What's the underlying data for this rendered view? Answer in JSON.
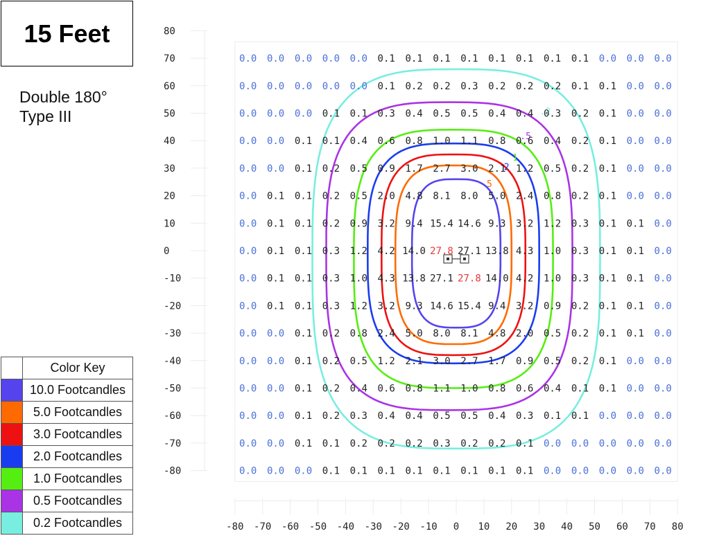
{
  "title": "15 Feet",
  "subtitle": [
    "Double 180°",
    "Type III"
  ],
  "color_key": {
    "header": "Color Key",
    "items": [
      {
        "label": "10.0 Footcandles",
        "color": "#5544ee"
      },
      {
        "label": "5.0 Footcandles",
        "color": "#ff6a00"
      },
      {
        "label": "3.0 Footcandles",
        "color": "#ee1111"
      },
      {
        "label": "2.0 Footcandles",
        "color": "#1a3cf0"
      },
      {
        "label": "1.0 Footcandles",
        "color": "#55ee11"
      },
      {
        "label": "0.5 Footcandles",
        "color": "#aa33e6"
      },
      {
        "label": "0.2 Footcandles",
        "color": "#77eee0"
      }
    ]
  },
  "chart_data": {
    "type": "heatmap",
    "x_ticks": [
      "-80",
      "-70",
      "-60",
      "-50",
      "-40",
      "-30",
      "-20",
      "-10",
      "0",
      "10",
      "20",
      "30",
      "40",
      "50",
      "60",
      "70",
      "80"
    ],
    "y_ticks": [
      "80",
      "70",
      "60",
      "50",
      "40",
      "30",
      "20",
      "10",
      "0",
      "-10",
      "-20",
      "-30",
      "-40",
      "-50",
      "-60",
      "-70",
      "-80"
    ],
    "x": [
      -70,
      -60,
      -50,
      -40,
      -30,
      -20,
      -10,
      0,
      10,
      20,
      30,
      40,
      50,
      60,
      70,
      80
    ],
    "y": [
      70,
      60,
      50,
      40,
      30,
      20,
      10,
      0,
      -10,
      -20,
      -30,
      -40,
      -50,
      -60,
      -70,
      -80
    ],
    "values": [
      [
        "0.0",
        "0.0",
        "0.0",
        "0.0",
        "0.0",
        "0.1",
        "0.1",
        "0.1",
        "0.1",
        "0.1",
        "0.1",
        "0.1",
        "0.1",
        "0.0",
        "0.0",
        "0.0"
      ],
      [
        "0.0",
        "0.0",
        "0.0",
        "0.0",
        "0.0",
        "0.1",
        "0.2",
        "0.2",
        "0.3",
        "0.2",
        "0.2",
        "0.2",
        "0.1",
        "0.1",
        "0.0",
        "0.0"
      ],
      [
        "0.0",
        "0.0",
        "0.0",
        "0.1",
        "0.1",
        "0.3",
        "0.4",
        "0.5",
        "0.5",
        "0.4",
        "0.4",
        "0.3",
        "0.2",
        "0.1",
        "0.0",
        "0.0"
      ],
      [
        "0.0",
        "0.0",
        "0.1",
        "0.1",
        "0.4",
        "0.6",
        "0.8",
        "1.0",
        "1.1",
        "0.8",
        "0.6",
        "0.4",
        "0.2",
        "0.1",
        "0.0",
        "0.0"
      ],
      [
        "0.0",
        "0.0",
        "0.1",
        "0.2",
        "0.5",
        "0.9",
        "1.7",
        "2.7",
        "3.0",
        "2.1",
        "1.2",
        "0.5",
        "0.2",
        "0.1",
        "0.0",
        "0.0"
      ],
      [
        "0.0",
        "0.1",
        "0.1",
        "0.2",
        "0.5",
        "2.0",
        "4.8",
        "8.1",
        "8.0",
        "5.0",
        "2.4",
        "0.8",
        "0.2",
        "0.1",
        "0.0",
        "0.0"
      ],
      [
        "0.0",
        "0.1",
        "0.1",
        "0.2",
        "0.9",
        "3.2",
        "9.4",
        "15.4",
        "14.6",
        "9.3",
        "3.2",
        "1.2",
        "0.3",
        "0.1",
        "0.1",
        "0.0"
      ],
      [
        "0.0",
        "0.1",
        "0.1",
        "0.3",
        "1.2",
        "4.2",
        "14.0",
        "27.8",
        "27.1",
        "13.8",
        "4.3",
        "1.0",
        "0.3",
        "0.1",
        "0.1",
        "0.0"
      ],
      [
        "0.0",
        "0.1",
        "0.1",
        "0.3",
        "1.0",
        "4.3",
        "13.8",
        "27.1",
        "27.8",
        "14.0",
        "4.2",
        "1.0",
        "0.3",
        "0.1",
        "0.1",
        "0.0"
      ],
      [
        "0.0",
        "0.1",
        "0.1",
        "0.3",
        "1.2",
        "3.2",
        "9.3",
        "14.6",
        "15.4",
        "9.4",
        "3.2",
        "0.9",
        "0.2",
        "0.1",
        "0.1",
        "0.0"
      ],
      [
        "0.0",
        "0.0",
        "0.1",
        "0.2",
        "0.8",
        "2.4",
        "5.0",
        "8.0",
        "8.1",
        "4.8",
        "2.0",
        "0.5",
        "0.2",
        "0.1",
        "0.1",
        "0.0"
      ],
      [
        "0.0",
        "0.0",
        "0.1",
        "0.2",
        "0.5",
        "1.2",
        "2.1",
        "3.0",
        "2.7",
        "1.7",
        "0.9",
        "0.5",
        "0.2",
        "0.1",
        "0.0",
        "0.0"
      ],
      [
        "0.0",
        "0.0",
        "0.1",
        "0.2",
        "0.4",
        "0.6",
        "0.8",
        "1.1",
        "1.0",
        "0.8",
        "0.6",
        "0.4",
        "0.1",
        "0.1",
        "0.0",
        "0.0"
      ],
      [
        "0.0",
        "0.0",
        "0.1",
        "0.2",
        "0.3",
        "0.4",
        "0.4",
        "0.5",
        "0.5",
        "0.4",
        "0.3",
        "0.1",
        "0.1",
        "0.0",
        "0.0",
        "0.0"
      ],
      [
        "0.0",
        "0.0",
        "0.1",
        "0.1",
        "0.2",
        "0.2",
        "0.2",
        "0.3",
        "0.2",
        "0.2",
        "0.1",
        "0.0",
        "0.0",
        "0.0",
        "0.0",
        "0.0"
      ],
      [
        "0.0",
        "0.0",
        "0.0",
        "0.1",
        "0.1",
        "0.1",
        "0.1",
        "0.1",
        "0.1",
        "0.1",
        "0.1",
        "0.0",
        "0.0",
        "0.0",
        "0.0",
        "0.0"
      ]
    ],
    "value_colors": {
      "zero": "#4a6fd8",
      "nonzero": "#222222",
      "max": "#e8373c"
    },
    "contours": [
      {
        "level": 10.0,
        "label": "",
        "color": "#5544ee",
        "x_range": [
          -16,
          16
        ],
        "y_range": [
          -28,
          26
        ]
      },
      {
        "level": 5.0,
        "label": "5",
        "color": "#ff6a00",
        "x_range": [
          -22,
          20
        ],
        "y_range": [
          -34,
          31
        ]
      },
      {
        "level": 3.0,
        "label": "",
        "color": "#ee1111",
        "x_range": [
          -27,
          25
        ],
        "y_range": [
          -38,
          35
        ]
      },
      {
        "level": 2.0,
        "label": "2",
        "color": "#1a3cf0",
        "x_range": [
          -32,
          30
        ],
        "y_range": [
          -41,
          39
        ]
      },
      {
        "level": 1.0,
        "label": "1",
        "color": "#55ee11",
        "x_range": [
          -37,
          35
        ],
        "y_range": [
          -50,
          44
        ]
      },
      {
        "level": 0.5,
        "label": ".5",
        "color": "#aa33e6",
        "x_range": [
          -47,
          42
        ],
        "y_range": [
          -58,
          54
        ]
      },
      {
        "level": 0.2,
        "label": ".2",
        "color": "#77eee0",
        "x_range": [
          -52,
          52
        ],
        "y_range": [
          -72,
          66
        ]
      }
    ],
    "fixtures": [
      {
        "x": -3,
        "y": -3
      },
      {
        "x": 3,
        "y": -3
      }
    ]
  }
}
